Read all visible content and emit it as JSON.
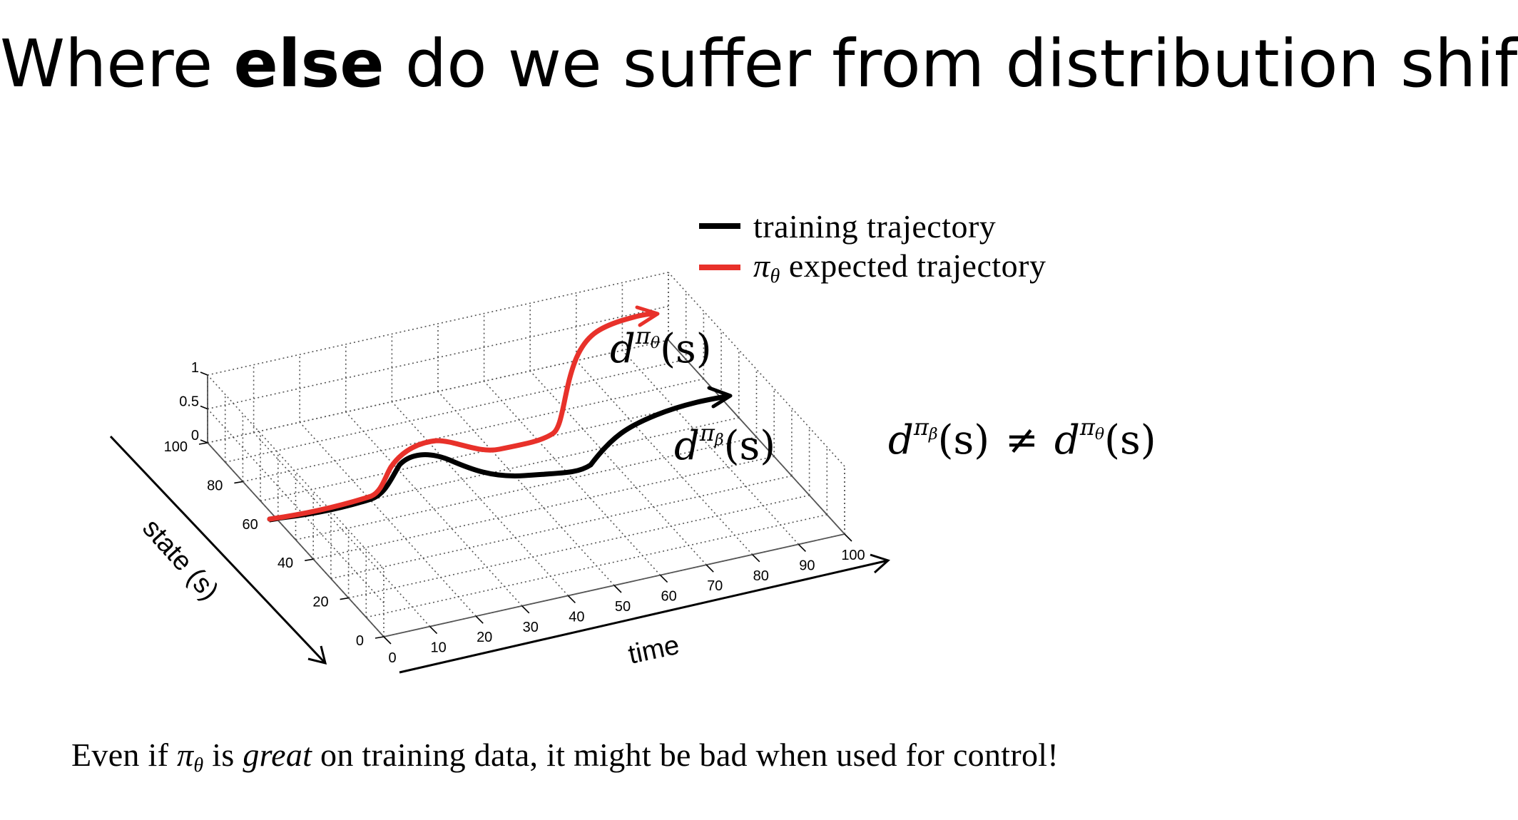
{
  "slide": {
    "title_before": "Where ",
    "title_emphasis": "else",
    "title_after": " do we suffer from distribution shift?"
  },
  "legend": {
    "items": [
      {
        "label_prefix": "",
        "label": "training trajectory",
        "color": "#000000"
      },
      {
        "label_prefix": "π",
        "label_sub": "θ",
        "label": " expected trajectory",
        "color": "#e8312a"
      }
    ]
  },
  "annotations": {
    "d_theta_base": "d",
    "d_theta_sup": "π",
    "d_theta_sub": "θ",
    "d_theta_arg": "(s)",
    "d_beta_base": "d",
    "d_beta_sup": "π",
    "d_beta_sub": "β",
    "d_beta_arg": "(s)",
    "neq": "≠"
  },
  "axes": {
    "z_ticks": [
      "1",
      "0.5",
      "0"
    ],
    "state_ticks": [
      "100",
      "80",
      "60",
      "40",
      "20",
      "0"
    ],
    "time_ticks": [
      "0",
      "10",
      "20",
      "30",
      "40",
      "50",
      "60",
      "70",
      "80",
      "90",
      "100"
    ],
    "state_label": "state (s)",
    "time_label": "time"
  },
  "footer": {
    "prefix": "Even if ",
    "pi": "π",
    "pi_sub": "θ",
    "middle": " is ",
    "emphasis": "great",
    "suffix": " on training data, it might be bad when used for control!"
  },
  "colors": {
    "training": "#000000",
    "expected": "#e8312a",
    "grid": "#555555"
  }
}
